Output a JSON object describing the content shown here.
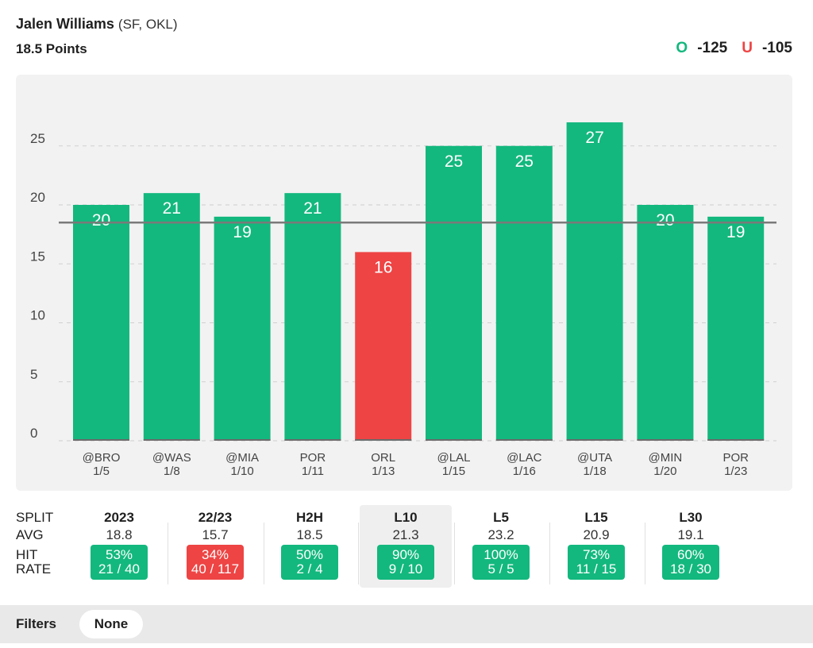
{
  "header": {
    "player_name": "Jalen Williams",
    "player_team": "(SF, OKL)",
    "prop": "18.5 Points",
    "over_label": "O",
    "over_odds": "-125",
    "under_label": "U",
    "under_odds": "-105"
  },
  "colors": {
    "over": "#13b87e",
    "under": "#ee4444",
    "line": "#7a7a7a"
  },
  "chart_data": {
    "type": "bar",
    "title": "",
    "xlabel": "",
    "ylabel": "",
    "ylim": [
      0,
      30
    ],
    "yticks": [
      0,
      5,
      10,
      15,
      20,
      25
    ],
    "line_value": 18.5,
    "categories": [
      {
        "opp": "@BRO",
        "date": "1/5"
      },
      {
        "opp": "@WAS",
        "date": "1/8"
      },
      {
        "opp": "@MIA",
        "date": "1/10"
      },
      {
        "opp": "POR",
        "date": "1/11"
      },
      {
        "opp": "ORL",
        "date": "1/13"
      },
      {
        "opp": "@LAL",
        "date": "1/15"
      },
      {
        "opp": "@LAC",
        "date": "1/16"
      },
      {
        "opp": "@UTA",
        "date": "1/18"
      },
      {
        "opp": "@MIN",
        "date": "1/20"
      },
      {
        "opp": "POR",
        "date": "1/23"
      }
    ],
    "values": [
      20,
      21,
      19,
      21,
      16,
      25,
      25,
      27,
      20,
      19
    ],
    "grid": true
  },
  "splits": {
    "row_labels": {
      "split": "SPLIT",
      "avg": "AVG",
      "hit": "HIT",
      "rate": "RATE"
    },
    "columns": [
      {
        "name": "2023",
        "avg": "18.8",
        "pct": "53%",
        "record": "21 / 40",
        "status": "green",
        "highlight": false
      },
      {
        "name": "22/23",
        "avg": "15.7",
        "pct": "34%",
        "record": "40 / 117",
        "status": "red",
        "highlight": false
      },
      {
        "name": "H2H",
        "avg": "18.5",
        "pct": "50%",
        "record": "2 / 4",
        "status": "green",
        "highlight": false
      },
      {
        "name": "L10",
        "avg": "21.3",
        "pct": "90%",
        "record": "9 / 10",
        "status": "green",
        "highlight": true
      },
      {
        "name": "L5",
        "avg": "23.2",
        "pct": "100%",
        "record": "5 / 5",
        "status": "green",
        "highlight": false
      },
      {
        "name": "L15",
        "avg": "20.9",
        "pct": "73%",
        "record": "11 / 15",
        "status": "green",
        "highlight": false
      },
      {
        "name": "L30",
        "avg": "19.1",
        "pct": "60%",
        "record": "18 / 30",
        "status": "green",
        "highlight": false
      }
    ]
  },
  "filters": {
    "label": "Filters",
    "selected": "None"
  }
}
